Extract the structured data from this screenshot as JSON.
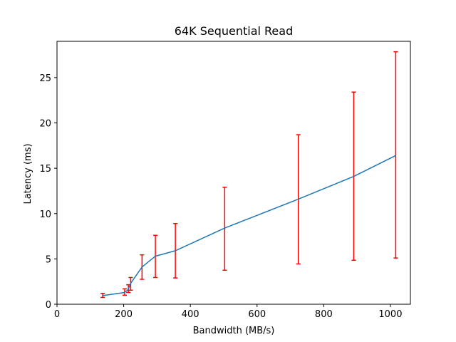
{
  "chart_data": {
    "type": "line",
    "title": "64K  Sequential Read",
    "xlabel": "Bandwidth (MB/s)",
    "ylabel": "Latency (ms)",
    "xlim": [
      0,
      1060
    ],
    "ylim": [
      0,
      29
    ],
    "xticks": [
      0,
      200,
      400,
      600,
      800,
      1000
    ],
    "yticks": [
      0,
      5,
      10,
      15,
      20,
      25
    ],
    "grid": false,
    "series": [
      {
        "color": "#1f77b4",
        "error_color": "#ff0000",
        "points": [
          {
            "x": 137,
            "y": 0.95,
            "lo": 0.75,
            "hi": 1.2
          },
          {
            "x": 203,
            "y": 1.3,
            "lo": 1.0,
            "hi": 1.7
          },
          {
            "x": 214,
            "y": 1.65,
            "lo": 1.3,
            "hi": 2.15
          },
          {
            "x": 221,
            "y": 2.3,
            "lo": 1.55,
            "hi": 2.95
          },
          {
            "x": 255,
            "y": 4.1,
            "lo": 2.75,
            "hi": 5.45
          },
          {
            "x": 295,
            "y": 5.3,
            "lo": 2.95,
            "hi": 7.6
          },
          {
            "x": 355,
            "y": 5.9,
            "lo": 2.9,
            "hi": 8.9
          },
          {
            "x": 503,
            "y": 8.4,
            "lo": 3.75,
            "hi": 12.9
          },
          {
            "x": 724,
            "y": 11.6,
            "lo": 4.45,
            "hi": 18.7
          },
          {
            "x": 890,
            "y": 14.1,
            "lo": 4.85,
            "hi": 23.4
          },
          {
            "x": 1016,
            "y": 16.4,
            "lo": 5.1,
            "hi": 27.85
          }
        ]
      }
    ]
  }
}
